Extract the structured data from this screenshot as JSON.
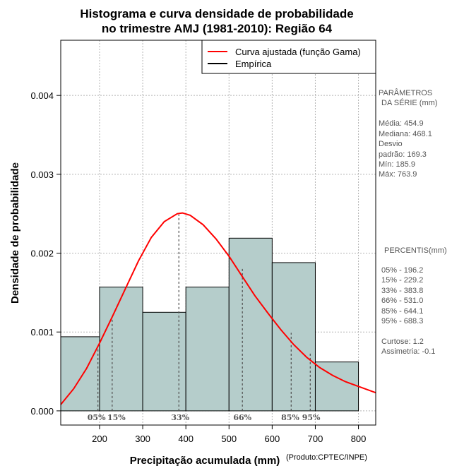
{
  "chart_data": {
    "type": "histogram",
    "title_line1": "Histograma e curva densidade de probabilidade",
    "title_line2": "no trimestre AMJ (1981-2010): Região 64",
    "xlabel": "Precipitação acumulada (mm)",
    "ylabel": "Densidade de probabilidade",
    "credit": "(Produto:CPTEC/INPE)",
    "xlim": [
      110,
      840
    ],
    "ylim": [
      -0.00018,
      0.0047
    ],
    "x_ticks": [
      200,
      300,
      400,
      500,
      600,
      700,
      800
    ],
    "x_tick_labels": [
      "200",
      "300",
      "400",
      "500",
      "600",
      "700",
      "800"
    ],
    "y_ticks": [
      0.0,
      0.001,
      0.002,
      0.003,
      0.004
    ],
    "y_tick_labels": [
      "0.000",
      "0.001",
      "0.002",
      "0.003",
      "0.004"
    ],
    "grid": true,
    "histogram": {
      "bin_edges": [
        100,
        200,
        300,
        400,
        500,
        600,
        700,
        800
      ],
      "density": [
        0.00094,
        0.00157,
        0.00125,
        0.00157,
        0.00219,
        0.00188,
        0.00062
      ]
    },
    "gamma_curve": {
      "name": "Curva ajustada (função Gama)",
      "color": "#ff0000",
      "x": [
        110,
        140,
        170,
        200,
        230,
        260,
        290,
        320,
        350,
        380,
        392,
        410,
        440,
        470,
        500,
        530,
        560,
        590,
        620,
        650,
        680,
        710,
        740,
        770,
        800,
        840
      ],
      "y": [
        8e-05,
        0.00028,
        0.00054,
        0.00086,
        0.0012,
        0.00155,
        0.0019,
        0.0022,
        0.0024,
        0.0025,
        0.00251,
        0.00248,
        0.00236,
        0.00218,
        0.00196,
        0.00171,
        0.00146,
        0.00124,
        0.00103,
        0.00084,
        0.00068,
        0.00055,
        0.00045,
        0.00037,
        0.00031,
        0.00023
      ]
    },
    "legend": {
      "position": "top-right",
      "entries": [
        {
          "label": "Curva ajustada (função Gama)",
          "color": "#ff0000"
        },
        {
          "label": "Empírica",
          "color": "#000000"
        }
      ]
    },
    "percentiles": [
      {
        "label": "05%",
        "value": 196.2,
        "density": 0.0008
      },
      {
        "label": "15%",
        "value": 229.2,
        "density": 0.00118
      },
      {
        "label": "33%",
        "value": 383.8,
        "density": 0.00249
      },
      {
        "label": "66%",
        "value": 531.0,
        "density": 0.0018
      },
      {
        "label": "85%",
        "value": 644.1,
        "density": 0.00099
      },
      {
        "label": "95%",
        "value": 688.3,
        "density": 0.00075
      }
    ],
    "percentile_bottom_labels": [
      "05%",
      "15%",
      "33%",
      "66%",
      "85% 95%"
    ],
    "colors": {
      "bar_fill": "#b5cdcb",
      "curve": "#ff0000",
      "grid": "#b3b3b3",
      "percentile_line": "#555555"
    }
  },
  "side_panel": {
    "params_heading": [
      "PARÂMETROS",
      "DA SÉRIE (mm)"
    ],
    "params": [
      "Média:  454.9",
      "Mediana:  468.1",
      "Desvio",
      "padrão:  169.3",
      "Mín:  185.9",
      "Máx:  763.9"
    ],
    "percentis_heading": "PERCENTIS(mm)",
    "percentis": [
      "05% -   196.2",
      "15% -   229.2",
      "33% -   383.8",
      "66% -   531.0",
      "85% -   644.1",
      "95% -   688.3"
    ],
    "shape_stats": [
      "Curtose:  1.2",
      "Assimetria:  -0.1"
    ]
  }
}
